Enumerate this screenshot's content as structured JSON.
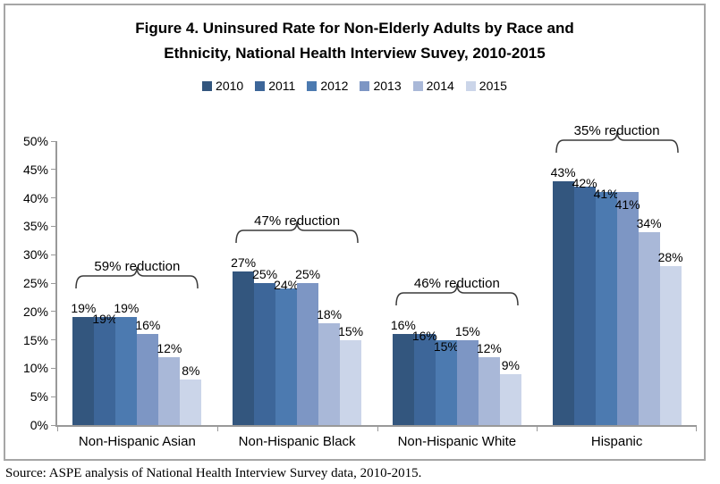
{
  "title": {
    "line1": "Figure 4. Uninsured Rate for Non-Elderly Adults by Race and",
    "line2": "Ethnicity, National Health Interview Suvey, 2010-2015"
  },
  "source": {
    "text": "Source: ASPE analysis of National Health Interview Survey data, 2010-2015."
  },
  "chart_data": {
    "type": "bar",
    "title": "Figure 4. Uninsured Rate for Non-Elderly Adults by Race and Ethnicity, National Health Interview Suvey, 2010-2015",
    "categories": [
      "Non-Hispanic Asian",
      "Non-Hispanic Black",
      "Non-Hispanic White",
      "Hispanic"
    ],
    "series": [
      {
        "name": "2010",
        "color": "#33567E",
        "values": [
          19,
          27,
          16,
          43
        ]
      },
      {
        "name": "2011",
        "color": "#3D6699",
        "values": [
          19,
          25,
          16,
          42
        ]
      },
      {
        "name": "2012",
        "color": "#4C7AB0",
        "values": [
          19,
          24,
          15,
          41
        ]
      },
      {
        "name": "2013",
        "color": "#7D96C4",
        "values": [
          16,
          25,
          15,
          41
        ]
      },
      {
        "name": "2014",
        "color": "#A9B8D8",
        "values": [
          12,
          18,
          12,
          34
        ]
      },
      {
        "name": "2015",
        "color": "#CBD5E9",
        "values": [
          8,
          15,
          9,
          28
        ]
      }
    ],
    "annotations": [
      "59% reduction",
      "47% reduction",
      "46% reduction",
      "35% reduction"
    ],
    "value_suffix": "%",
    "ylim": [
      0,
      50
    ],
    "y_ticks": [
      "0%",
      "5%",
      "10%",
      "15%",
      "20%",
      "25%",
      "30%",
      "35%",
      "40%",
      "45%",
      "50%"
    ],
    "grid": false,
    "legend_position": "top",
    "data_labels": true
  }
}
